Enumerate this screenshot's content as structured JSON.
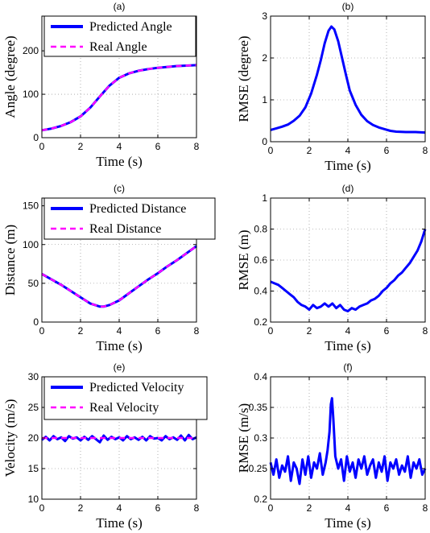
{
  "colors": {
    "predicted": "#0000ff",
    "real": "#ff00ff"
  },
  "chart_data": [
    {
      "type": "line",
      "panel": "(a)",
      "xlabel": "Time (s)",
      "ylabel": "Angle (degree)",
      "xlim": [
        0,
        8
      ],
      "ylim": [
        0,
        280
      ],
      "xticks": [
        0,
        2,
        4,
        6,
        8
      ],
      "yticks": [
        0,
        100,
        200
      ],
      "grid": true,
      "legend": "top-left",
      "series": [
        {
          "name": "Predicted Angle",
          "style": "solid",
          "x": [
            0,
            0.5,
            1,
            1.5,
            2,
            2.5,
            3,
            3.5,
            4,
            4.5,
            5,
            5.5,
            6,
            6.5,
            7,
            7.5,
            8
          ],
          "y": [
            17,
            21,
            27,
            36,
            49,
            69,
            95,
            120,
            138,
            148,
            154,
            158,
            161,
            163,
            165,
            166,
            167
          ]
        },
        {
          "name": "Real Angle",
          "style": "dashed",
          "x": [
            0,
            0.5,
            1,
            1.5,
            2,
            2.5,
            3,
            3.5,
            4,
            4.5,
            5,
            5.5,
            6,
            6.5,
            7,
            7.5,
            8
          ],
          "y": [
            17,
            21,
            27,
            36,
            49,
            69,
            95,
            120,
            138,
            148,
            154,
            158,
            161,
            163,
            165,
            166,
            167
          ]
        }
      ]
    },
    {
      "type": "line",
      "panel": "(b)",
      "xlabel": "Time (s)",
      "ylabel": "RMSE (degree)",
      "xlim": [
        0,
        8
      ],
      "ylim": [
        0,
        3
      ],
      "xticks": [
        0,
        2,
        4,
        6,
        8
      ],
      "yticks": [
        0,
        1,
        2,
        3
      ],
      "grid": true,
      "series": [
        {
          "name": "",
          "style": "solid",
          "x": [
            0,
            0.3,
            0.6,
            0.9,
            1.2,
            1.5,
            1.8,
            2.1,
            2.4,
            2.6,
            2.8,
            3.0,
            3.15,
            3.3,
            3.5,
            3.7,
            3.9,
            4.1,
            4.4,
            4.7,
            5.0,
            5.3,
            5.6,
            5.9,
            6.2,
            6.5,
            7.0,
            7.5,
            8.0
          ],
          "y": [
            0.28,
            0.32,
            0.36,
            0.41,
            0.5,
            0.62,
            0.82,
            1.15,
            1.6,
            1.95,
            2.35,
            2.65,
            2.75,
            2.68,
            2.4,
            2.0,
            1.6,
            1.22,
            0.88,
            0.64,
            0.49,
            0.4,
            0.34,
            0.3,
            0.26,
            0.24,
            0.23,
            0.23,
            0.22
          ]
        }
      ]
    },
    {
      "type": "line",
      "panel": "(c)",
      "xlabel": "Time (s)",
      "ylabel": "Distance (m)",
      "xlim": [
        0,
        8
      ],
      "ylim": [
        0,
        160
      ],
      "xticks": [
        0,
        2,
        4,
        6,
        8
      ],
      "yticks": [
        0,
        50,
        100,
        150
      ],
      "grid": true,
      "legend": "top-left",
      "series": [
        {
          "name": "Predicted Distance",
          "style": "solid",
          "x": [
            0,
            0.5,
            1,
            1.5,
            2,
            2.5,
            3,
            3.2,
            3.5,
            4,
            4.5,
            5,
            5.5,
            6,
            6.5,
            7,
            7.5,
            8
          ],
          "y": [
            62,
            55,
            48,
            40,
            32,
            24,
            20,
            20,
            22,
            28,
            37,
            46,
            55,
            63,
            72,
            80,
            89,
            98
          ]
        },
        {
          "name": "Real Distance",
          "style": "dashed",
          "x": [
            0,
            0.5,
            1,
            1.5,
            2,
            2.5,
            3,
            3.2,
            3.5,
            4,
            4.5,
            5,
            5.5,
            6,
            6.5,
            7,
            7.5,
            8
          ],
          "y": [
            62,
            55,
            48,
            40,
            32,
            24,
            20,
            20,
            22,
            28,
            37,
            46,
            55,
            63,
            72,
            80,
            89,
            98
          ]
        }
      ]
    },
    {
      "type": "line",
      "panel": "(d)",
      "xlabel": "Time (s)",
      "ylabel": "RMSE (m)",
      "xlim": [
        0,
        8
      ],
      "ylim": [
        0.2,
        1
      ],
      "xticks": [
        0,
        2,
        4,
        6,
        8
      ],
      "yticks": [
        0.2,
        0.4,
        0.6,
        0.8,
        1
      ],
      "grid": true,
      "series": [
        {
          "name": "",
          "style": "solid",
          "x": [
            0,
            0.2,
            0.4,
            0.6,
            0.8,
            1.0,
            1.2,
            1.4,
            1.6,
            1.8,
            2.0,
            2.2,
            2.4,
            2.6,
            2.8,
            3.0,
            3.2,
            3.4,
            3.6,
            3.8,
            4.0,
            4.2,
            4.4,
            4.6,
            4.8,
            5.0,
            5.2,
            5.4,
            5.6,
            5.8,
            6.0,
            6.2,
            6.4,
            6.6,
            6.8,
            7.0,
            7.2,
            7.4,
            7.6,
            7.8,
            8.0
          ],
          "y": [
            0.46,
            0.45,
            0.44,
            0.42,
            0.4,
            0.38,
            0.36,
            0.33,
            0.31,
            0.3,
            0.28,
            0.31,
            0.29,
            0.3,
            0.32,
            0.3,
            0.32,
            0.29,
            0.31,
            0.28,
            0.27,
            0.29,
            0.28,
            0.3,
            0.31,
            0.32,
            0.34,
            0.35,
            0.37,
            0.4,
            0.42,
            0.45,
            0.47,
            0.5,
            0.52,
            0.55,
            0.58,
            0.62,
            0.66,
            0.72,
            0.8
          ]
        }
      ]
    },
    {
      "type": "line",
      "panel": "(e)",
      "xlabel": "Time (s)",
      "ylabel": "Velocity (m/s)",
      "xlim": [
        0,
        8
      ],
      "ylim": [
        10,
        30
      ],
      "xticks": [
        0,
        2,
        4,
        6,
        8
      ],
      "yticks": [
        10,
        15,
        20,
        25,
        30
      ],
      "grid": true,
      "legend": "top-left",
      "series": [
        {
          "name": "Predicted Velocity",
          "style": "solid",
          "x": [
            0,
            0.2,
            0.4,
            0.6,
            0.8,
            1.0,
            1.2,
            1.4,
            1.6,
            1.8,
            2.0,
            2.2,
            2.4,
            2.6,
            2.8,
            3.0,
            3.2,
            3.4,
            3.6,
            3.8,
            4.0,
            4.2,
            4.4,
            4.6,
            4.8,
            5.0,
            5.2,
            5.4,
            5.6,
            5.8,
            6.0,
            6.2,
            6.4,
            6.6,
            6.8,
            7.0,
            7.2,
            7.4,
            7.6,
            7.8,
            8.0
          ],
          "y": [
            19.7,
            20.2,
            19.6,
            20.3,
            19.8,
            20.1,
            19.5,
            20.3,
            19.9,
            20.1,
            19.6,
            20.2,
            19.7,
            20.3,
            19.8,
            19.3,
            20.4,
            19.7,
            20.2,
            19.8,
            20.1,
            19.6,
            20.3,
            19.8,
            20.1,
            19.7,
            20.2,
            19.6,
            20.3,
            19.9,
            20.0,
            19.6,
            20.3,
            19.8,
            20.1,
            19.7,
            20.4,
            19.6,
            20.5,
            19.8,
            20.1
          ]
        },
        {
          "name": "Real Velocity",
          "style": "dashed",
          "x": [
            0,
            8
          ],
          "y": [
            20,
            20
          ]
        }
      ]
    },
    {
      "type": "line",
      "panel": "(f)",
      "xlabel": "Time (s)",
      "ylabel": "RMSE (m/s)",
      "xlim": [
        0,
        8
      ],
      "ylim": [
        0.2,
        0.4
      ],
      "xticks": [
        0,
        2,
        4,
        6,
        8
      ],
      "yticks": [
        0.2,
        0.25,
        0.3,
        0.35,
        0.4
      ],
      "grid": true,
      "series": [
        {
          "name": "",
          "style": "solid",
          "x": [
            0,
            0.15,
            0.3,
            0.45,
            0.6,
            0.75,
            0.9,
            1.05,
            1.2,
            1.35,
            1.5,
            1.65,
            1.8,
            1.95,
            2.1,
            2.25,
            2.4,
            2.55,
            2.7,
            2.85,
            2.95,
            3.05,
            3.12,
            3.18,
            3.25,
            3.35,
            3.5,
            3.65,
            3.8,
            3.95,
            4.1,
            4.25,
            4.4,
            4.55,
            4.7,
            4.85,
            5.0,
            5.15,
            5.3,
            5.45,
            5.6,
            5.75,
            5.9,
            6.05,
            6.2,
            6.35,
            6.5,
            6.65,
            6.8,
            6.95,
            7.1,
            7.25,
            7.4,
            7.55,
            7.7,
            7.85,
            8.0
          ],
          "y": [
            0.26,
            0.24,
            0.265,
            0.235,
            0.255,
            0.245,
            0.27,
            0.23,
            0.26,
            0.25,
            0.225,
            0.265,
            0.24,
            0.27,
            0.235,
            0.26,
            0.25,
            0.275,
            0.24,
            0.26,
            0.28,
            0.31,
            0.355,
            0.365,
            0.33,
            0.27,
            0.25,
            0.265,
            0.23,
            0.27,
            0.245,
            0.26,
            0.235,
            0.265,
            0.25,
            0.27,
            0.24,
            0.255,
            0.265,
            0.235,
            0.26,
            0.245,
            0.27,
            0.23,
            0.26,
            0.25,
            0.265,
            0.24,
            0.255,
            0.245,
            0.27,
            0.235,
            0.26,
            0.25,
            0.265,
            0.24,
            0.25
          ]
        }
      ]
    }
  ]
}
